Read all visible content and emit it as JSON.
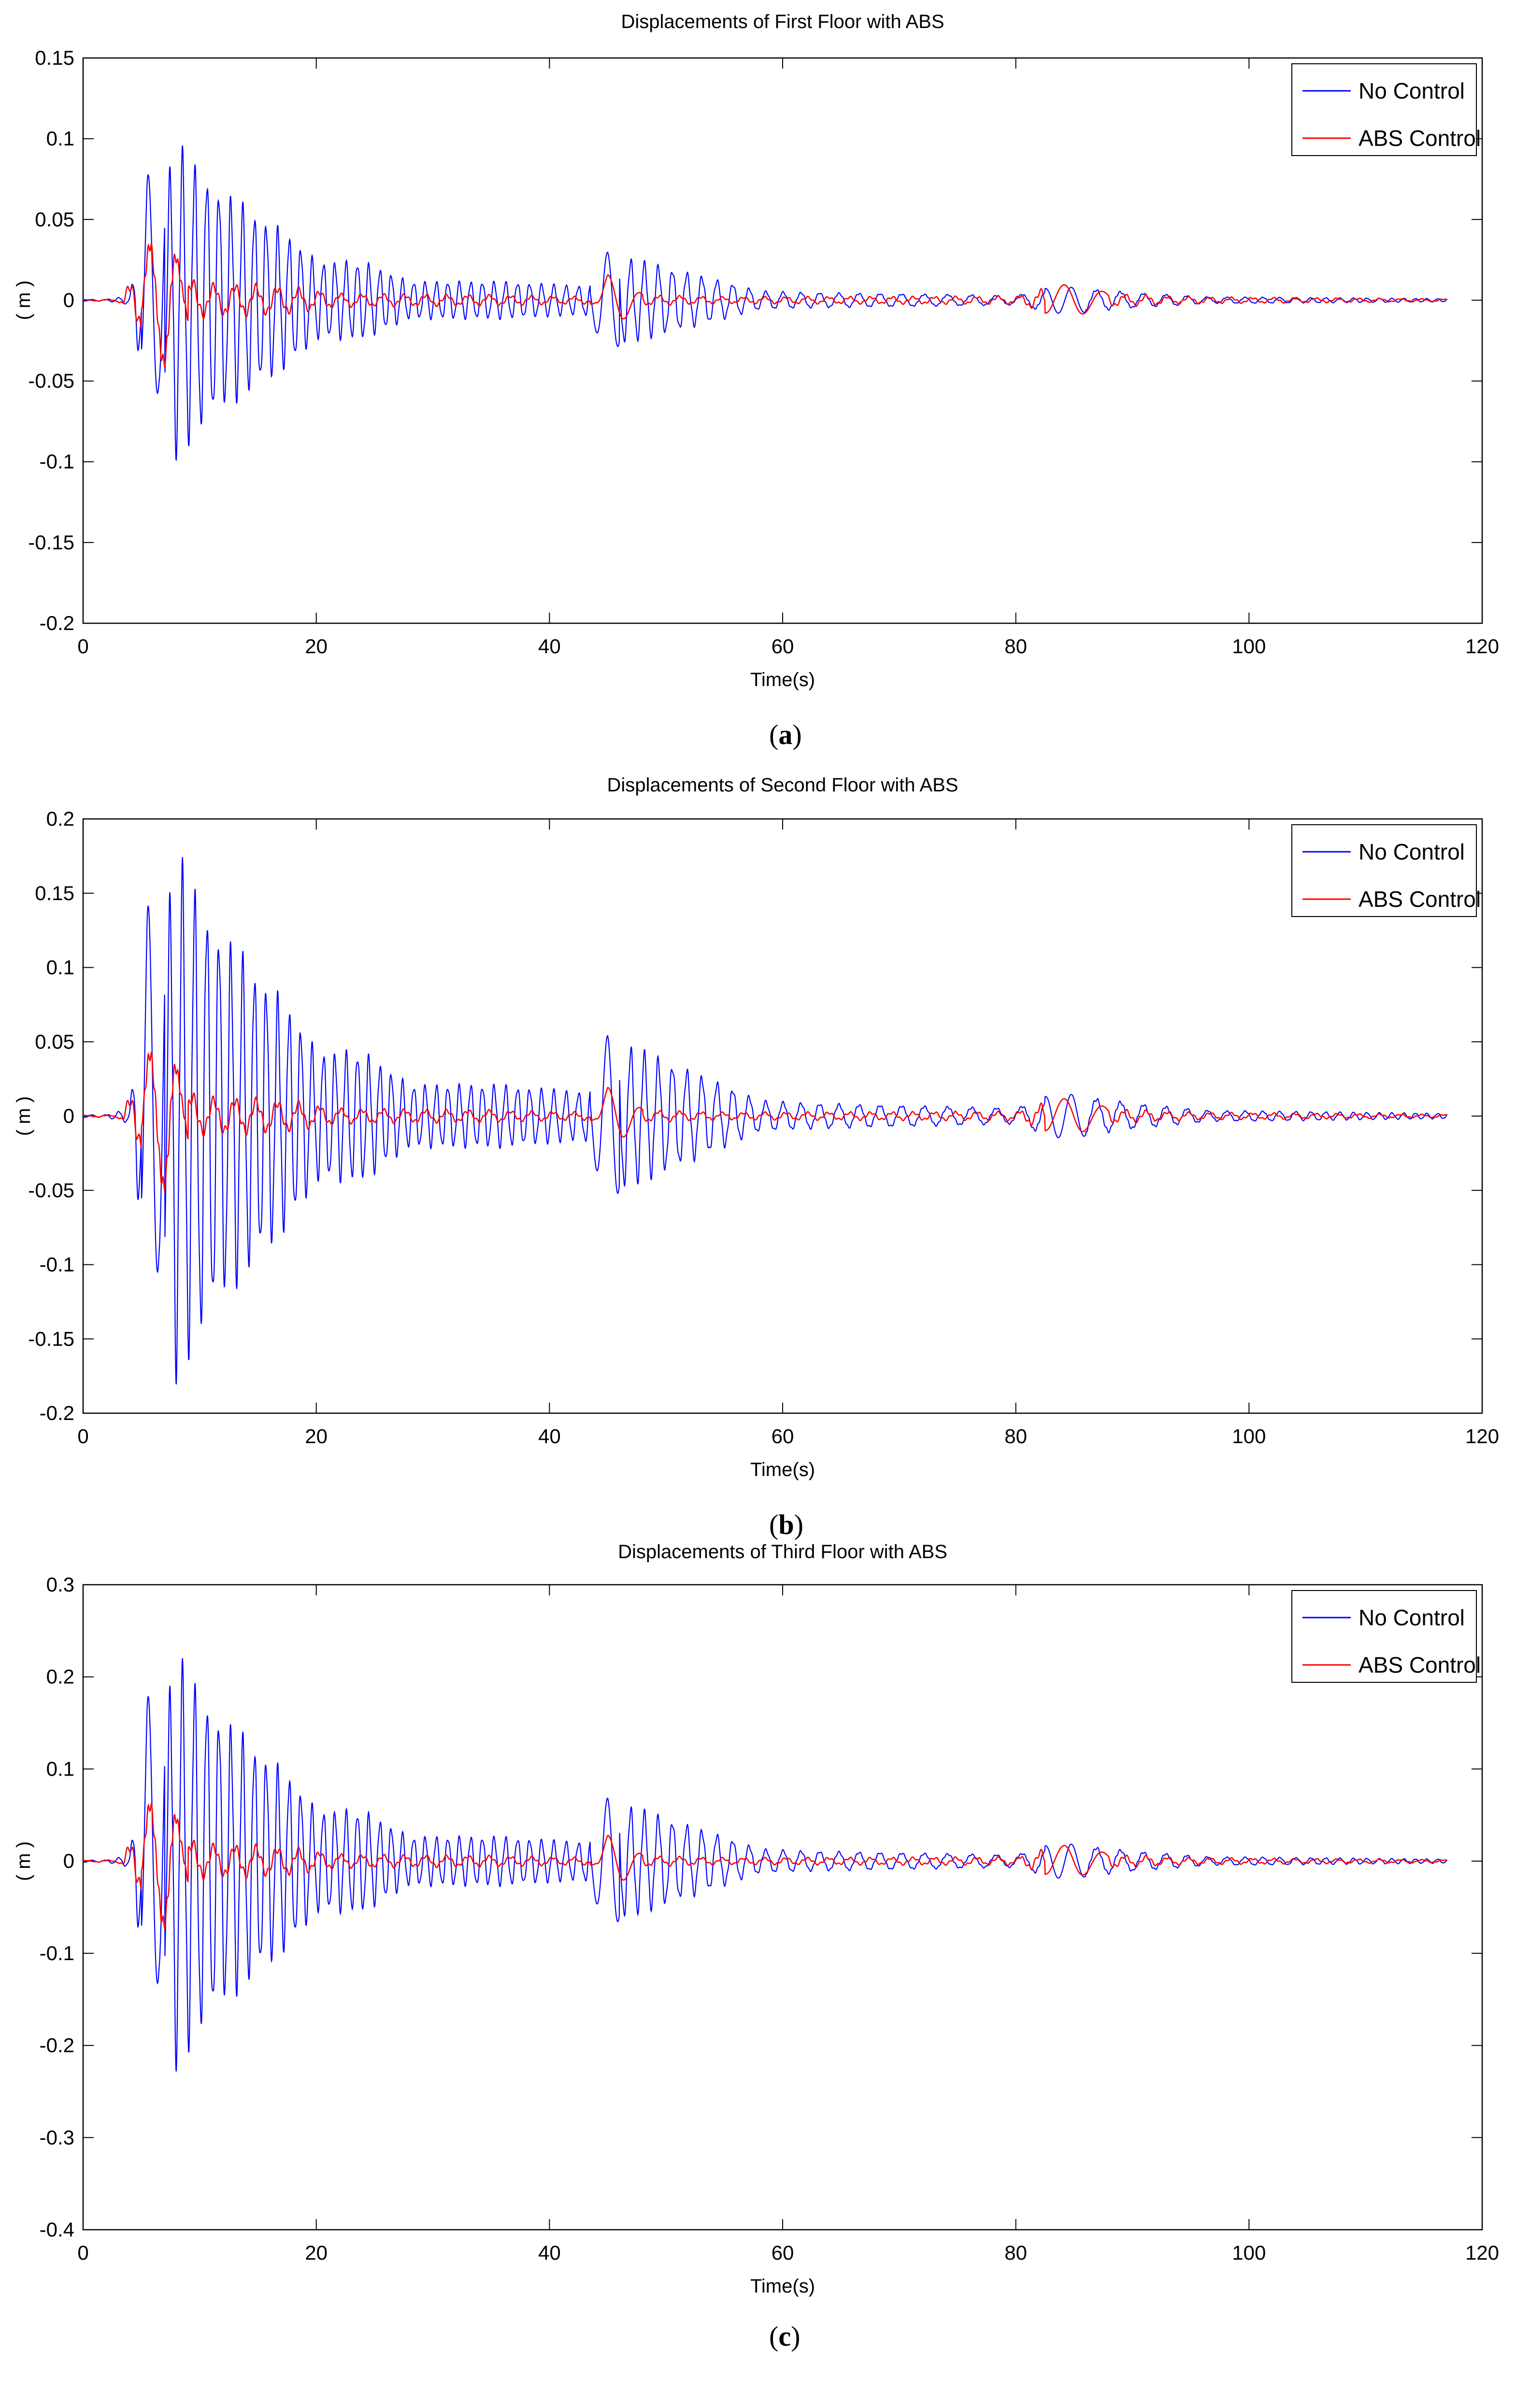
{
  "chart_data": [
    {
      "type": "line",
      "panel_label": "a",
      "title": "Displacements of First Floor with ABS",
      "xlabel": "Time(s)",
      "ylabel": "( m )",
      "xlim": [
        0,
        120
      ],
      "ylim": [
        -0.2,
        0.15
      ],
      "xticks": [
        "0",
        "20",
        "40",
        "60",
        "80",
        "100",
        "120"
      ],
      "yticks": [
        "0.15",
        "0.1",
        "0.05",
        "0",
        "-0.05",
        "-0.1",
        "-0.15",
        "-0.2"
      ],
      "legend": "top-right",
      "series": [
        {
          "name": "No Control",
          "color": "#0000ff",
          "amplitude_scale": 0.1
        },
        {
          "name": "ABS Control",
          "color": "#ff0000",
          "amplitude_scale": 0.045
        }
      ]
    },
    {
      "type": "line",
      "panel_label": "b",
      "title": "Displacements of Second Floor with ABS",
      "xlabel": "Time(s)",
      "ylabel": "( m )",
      "xlim": [
        0,
        120
      ],
      "ylim": [
        -0.2,
        0.2
      ],
      "xticks": [
        "0",
        "20",
        "40",
        "60",
        "80",
        "100",
        "120"
      ],
      "yticks": [
        "0.2",
        "0.15",
        "0.1",
        "0.05",
        "0",
        "-0.05",
        "-0.1",
        "-0.15",
        "-0.2"
      ],
      "legend": "top-right",
      "series": [
        {
          "name": "No Control",
          "color": "#0000ff",
          "amplitude_scale": 0.182
        },
        {
          "name": "ABS Control",
          "color": "#ff0000",
          "amplitude_scale": 0.055
        }
      ]
    },
    {
      "type": "line",
      "panel_label": "c",
      "title": "Displacements of Third Floor with ABS",
      "xlabel": "Time(s)",
      "ylabel": "( m )",
      "xlim": [
        0,
        120
      ],
      "ylim": [
        -0.4,
        0.3
      ],
      "xticks": [
        "0",
        "20",
        "40",
        "60",
        "80",
        "100",
        "120"
      ],
      "yticks": [
        "0.3",
        "0.2",
        "0.1",
        "0",
        "-0.1",
        "-0.2",
        "-0.3",
        "-0.4"
      ],
      "legend": "top-right",
      "series": [
        {
          "name": "No Control",
          "color": "#0000ff",
          "amplitude_scale": 0.23
        },
        {
          "name": "ABS Control",
          "color": "#ff0000",
          "amplitude_scale": 0.08
        }
      ]
    }
  ],
  "signal": {
    "end_time": 117,
    "no_control_envelope": [
      [
        0,
        0.005
      ],
      [
        2,
        0.005
      ],
      [
        4,
        0.03
      ],
      [
        5,
        0.45
      ],
      [
        5.5,
        0.8
      ],
      [
        6.5,
        0.55
      ],
      [
        8,
        1.0
      ],
      [
        10,
        0.85
      ],
      [
        12,
        0.7
      ],
      [
        15,
        0.55
      ],
      [
        18,
        0.4
      ],
      [
        20,
        0.25
      ],
      [
        24,
        0.25
      ],
      [
        28,
        0.12
      ],
      [
        36,
        0.12
      ],
      [
        43,
        0.09
      ],
      [
        45,
        0.3
      ],
      [
        48,
        0.25
      ],
      [
        55,
        0.12
      ],
      [
        58,
        0.06
      ],
      [
        62,
        0.05
      ],
      [
        80,
        0.03
      ],
      [
        83,
        0.08
      ],
      [
        85,
        0.08
      ],
      [
        90,
        0.05
      ],
      [
        97,
        0.02
      ],
      [
        100,
        0.02
      ],
      [
        117,
        0.01
      ]
    ],
    "abs_envelope": [
      [
        0,
        0.01
      ],
      [
        3,
        0.02
      ],
      [
        5,
        0.5
      ],
      [
        5.7,
        0.85
      ],
      [
        6.5,
        0.9
      ],
      [
        7.5,
        1.0
      ],
      [
        8.3,
        0.45
      ],
      [
        10,
        0.25
      ],
      [
        13,
        0.25
      ],
      [
        18,
        0.2
      ],
      [
        22,
        0.1
      ],
      [
        35,
        0.08
      ],
      [
        44,
        0.05
      ],
      [
        45,
        0.35
      ],
      [
        46,
        0.3
      ],
      [
        48,
        0.08
      ],
      [
        55,
        0.05
      ],
      [
        80,
        0.06
      ],
      [
        83,
        0.2
      ],
      [
        85,
        0.22
      ],
      [
        88,
        0.1
      ],
      [
        95,
        0.05
      ],
      [
        117,
        0.02
      ]
    ]
  }
}
